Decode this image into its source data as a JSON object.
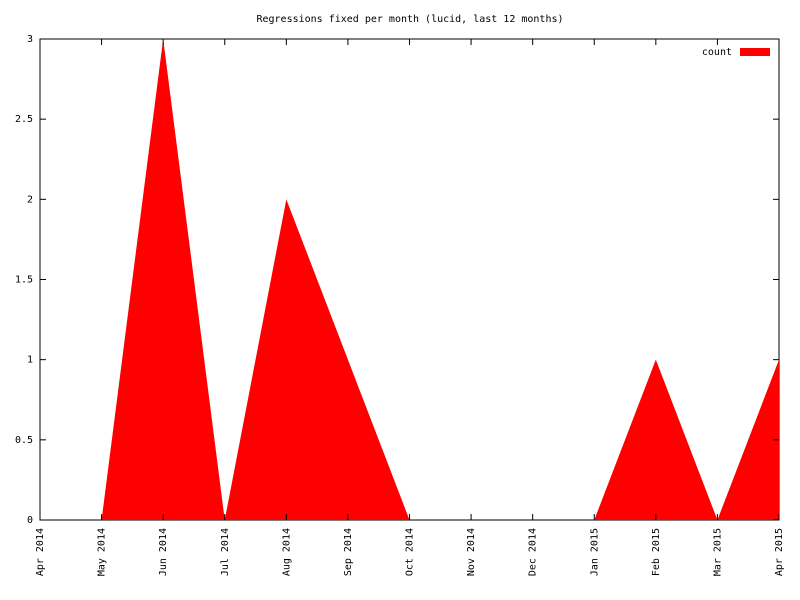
{
  "chart_data": {
    "type": "area",
    "title": "Regressions fixed per month (lucid, last 12 months)",
    "categories": [
      "Apr 2014",
      "May 2014",
      "Jun 2014",
      "Jul 2014",
      "Aug 2014",
      "Sep 2014",
      "Oct 2014",
      "Nov 2014",
      "Dec 2014",
      "Jan 2015",
      "Feb 2015",
      "Mar 2015",
      "Apr 2015"
    ],
    "series": [
      {
        "name": "count",
        "color": "#ff0000",
        "values": [
          0,
          0,
          3,
          0,
          2,
          1,
          0,
          0,
          0,
          0,
          1,
          0,
          1
        ]
      }
    ],
    "ylim": [
      0,
      3
    ],
    "yticks": [
      0,
      0.5,
      1,
      1.5,
      2,
      2.5,
      3
    ],
    "legend": "upper right",
    "grid": false
  }
}
